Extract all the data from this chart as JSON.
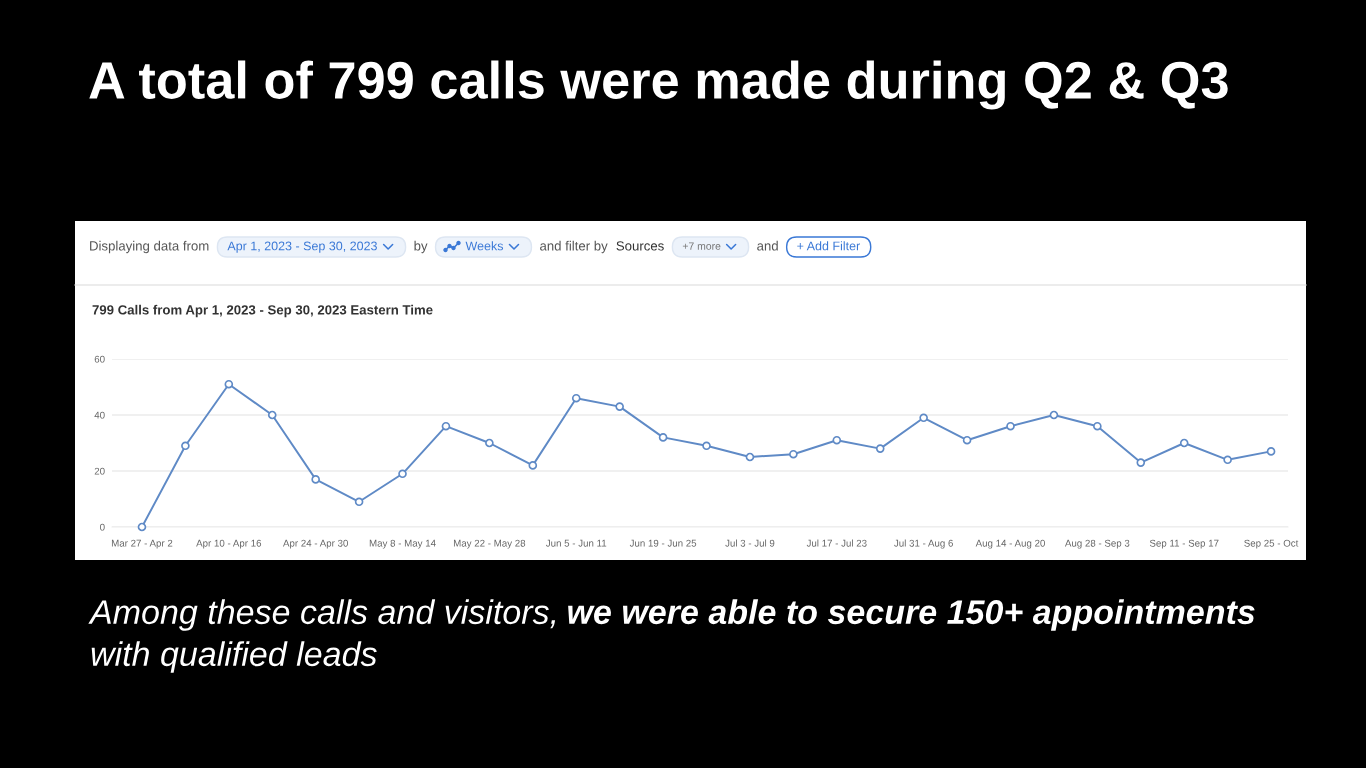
{
  "chart_data": {
    "type": "line",
    "title": "A total of 799 calls were made during Q2 & Q3",
    "subtitle": "799 Calls from Apr 1, 2023 - Sep 30, 2023 Eastern Time",
    "categories": [
      "Mar 27 - Apr 2",
      null,
      "Apr 10 - Apr 16",
      null,
      "Apr 24 - Apr 30",
      null,
      "May 8 - May 14",
      null,
      "May 22 - May 28",
      null,
      "Jun 5 - Jun 11",
      null,
      "Jun 19 - Jun 25",
      null,
      "Jul 3 - Jul 9",
      null,
      "Jul 17 - Jul 23",
      null,
      "Jul 31 - Aug 6",
      null,
      "Aug 14 - Aug 20",
      null,
      "Aug 28 - Sep 3",
      null,
      "Sep 11 - Sep 17",
      null,
      "Sep 25 - Oct"
    ],
    "values": [
      0,
      29,
      51,
      40,
      17,
      9,
      19,
      36,
      30,
      22,
      46,
      43,
      32,
      29,
      25,
      26,
      31,
      28,
      39,
      31,
      36,
      40,
      36,
      23,
      30,
      24,
      27
    ],
    "color": "#5f8ac6",
    "marker": "circle",
    "ylim": [
      0,
      60
    ],
    "yticks": [
      0,
      20,
      40,
      60
    ],
    "grid": "y",
    "annotations": [
      "Displaying data from",
      "Apr 1, 2023 - Sep 30, 2023",
      "by",
      "Weeks",
      "and filter by",
      "Sources",
      "+7 more",
      "and",
      "+ Add Filter",
      "Among these calls and visitors,",
      "we were able to secure 150+ appointments",
      "with qualified leads"
    ]
  }
}
